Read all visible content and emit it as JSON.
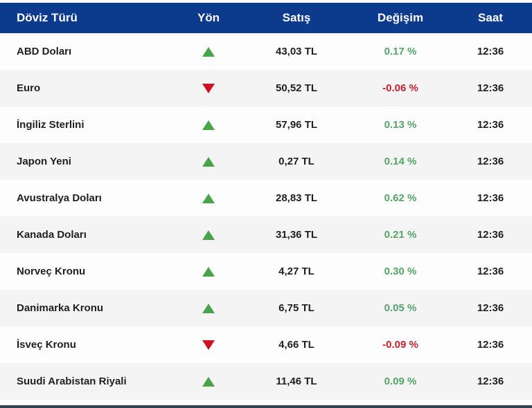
{
  "table": {
    "headers": {
      "currency": "Döviz Türü",
      "direction": "Yön",
      "sale": "Satış",
      "change": "Değişim",
      "time": "Saat"
    },
    "rows": [
      {
        "currency": "ABD Doları",
        "direction": "up",
        "sale": "43,03 TL",
        "change": "0.17 %",
        "time": "12:36"
      },
      {
        "currency": "Euro",
        "direction": "down",
        "sale": "50,52 TL",
        "change": "-0.06 %",
        "time": "12:36"
      },
      {
        "currency": "İngiliz Sterlini",
        "direction": "up",
        "sale": "57,96 TL",
        "change": "0.13 %",
        "time": "12:36"
      },
      {
        "currency": "Japon Yeni",
        "direction": "up",
        "sale": "0,27 TL",
        "change": "0.14 %",
        "time": "12:36"
      },
      {
        "currency": "Avustralya Doları",
        "direction": "up",
        "sale": "28,83 TL",
        "change": "0.62 %",
        "time": "12:36"
      },
      {
        "currency": "Kanada Doları",
        "direction": "up",
        "sale": "31,36 TL",
        "change": "0.21 %",
        "time": "12:36"
      },
      {
        "currency": "Norveç Kronu",
        "direction": "up",
        "sale": "4,27 TL",
        "change": "0.30 %",
        "time": "12:36"
      },
      {
        "currency": "Danimarka Kronu",
        "direction": "up",
        "sale": "6,75 TL",
        "change": "0.05 %",
        "time": "12:36"
      },
      {
        "currency": "İsveç Kronu",
        "direction": "down",
        "sale": "4,66 TL",
        "change": "-0.09 %",
        "time": "12:36"
      },
      {
        "currency": "Suudi Arabistan Riyali",
        "direction": "up",
        "sale": "11,46 TL",
        "change": "0.09 %",
        "time": "12:36"
      }
    ]
  },
  "colors": {
    "header_bg": "#0c3b8d",
    "stripe_bg": "#f4f4f5",
    "text_dark": "#1f1f1f",
    "up_triangle": "#47a44b",
    "down_triangle": "#cf1222",
    "positive_text": "#53a467",
    "negative_text": "#c8202e",
    "bottom_bar": "#2e4450"
  }
}
